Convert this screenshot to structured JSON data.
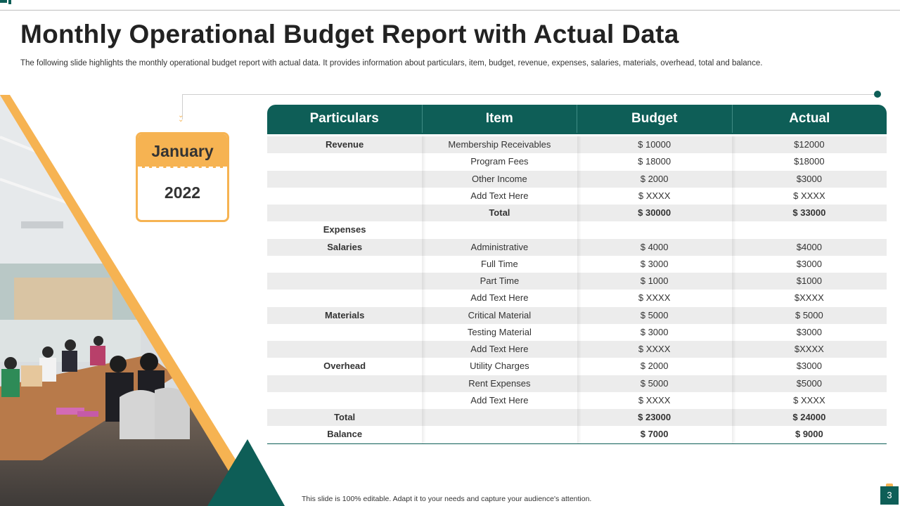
{
  "slide": {
    "title": "Monthly Operational Budget Report with Actual Data",
    "subtitle": "The following slide highlights the monthly operational budget report with actual data. It provides information about particulars, item, budget, revenue, expenses, salaries, materials, overhead, total and balance.",
    "footer": "This slide is 100% editable.  Adapt it to your needs and capture your audience's attention.",
    "page_number": "3"
  },
  "date_card": {
    "month": "January",
    "year": "2022"
  },
  "colors": {
    "primary": "#0e5e57",
    "accent": "#f6b352",
    "row_shade": "#ececec"
  },
  "table": {
    "headers": [
      "Particulars",
      "Item",
      "Budget",
      "Actual"
    ],
    "rows": [
      {
        "particular": "Revenue",
        "item": "Membership Receivables",
        "budget": "$ 10000",
        "actual": "$12000",
        "bold": false
      },
      {
        "particular": "",
        "item": "Program Fees",
        "budget": "$ 18000",
        "actual": "$18000",
        "bold": false
      },
      {
        "particular": "",
        "item": "Other Income",
        "budget": "$ 2000",
        "actual": "$3000",
        "bold": false
      },
      {
        "particular": "",
        "item": "Add Text Here",
        "budget": "$ XXXX",
        "actual": "$ XXXX",
        "bold": false
      },
      {
        "particular": "",
        "item": "Total",
        "budget": "$ 30000",
        "actual": "$ 33000",
        "bold": true
      },
      {
        "particular": "Expenses",
        "item": "",
        "budget": "",
        "actual": "",
        "bold": false
      },
      {
        "particular": "Salaries",
        "item": "Administrative",
        "budget": "$ 4000",
        "actual": "$4000",
        "bold": false
      },
      {
        "particular": "",
        "item": "Full Time",
        "budget": "$ 3000",
        "actual": "$3000",
        "bold": false
      },
      {
        "particular": "",
        "item": "Part Time",
        "budget": "$ 1000",
        "actual": "$1000",
        "bold": false
      },
      {
        "particular": "",
        "item": "Add Text Here",
        "budget": "$ XXXX",
        "actual": "$XXXX",
        "bold": false
      },
      {
        "particular": "Materials",
        "item": "Critical Material",
        "budget": "$ 5000",
        "actual": "$ 5000",
        "bold": false
      },
      {
        "particular": "",
        "item": "Testing Material",
        "budget": "$ 3000",
        "actual": "$3000",
        "bold": false
      },
      {
        "particular": "",
        "item": "Add Text Here",
        "budget": "$ XXXX",
        "actual": "$XXXX",
        "bold": false
      },
      {
        "particular": "Overhead",
        "item": "Utility Charges",
        "budget": "$ 2000",
        "actual": "$3000",
        "bold": false
      },
      {
        "particular": "",
        "item": "Rent Expenses",
        "budget": "$ 5000",
        "actual": "$5000",
        "bold": false
      },
      {
        "particular": "",
        "item": "Add Text Here",
        "budget": "$ XXXX",
        "actual": "$ XXXX",
        "bold": false
      },
      {
        "particular": "Total",
        "item": "",
        "budget": "$ 23000",
        "actual": "$ 24000",
        "bold": true
      },
      {
        "particular": "Balance",
        "item": "",
        "budget": "$ 7000",
        "actual": "$ 9000",
        "bold": true
      }
    ]
  }
}
